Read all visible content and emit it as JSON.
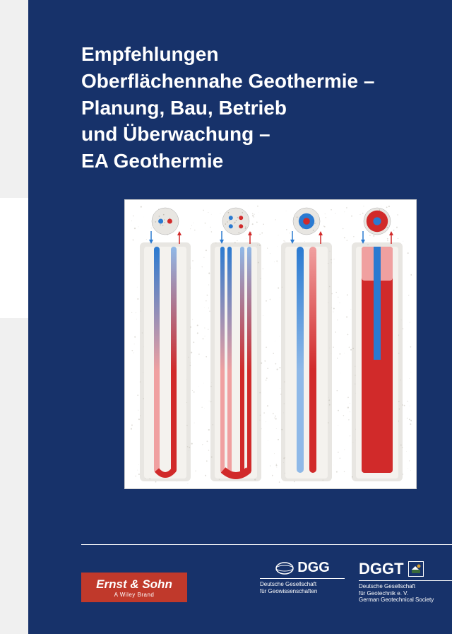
{
  "title_lines": "Empfehlungen\nOberflächennahe Geothermie –\nPlanung, Bau, Betrieb\nund Überwachung –\nEA Geothermie",
  "colors": {
    "cover_bg": "#17326a",
    "diagram_bg": "#ffffff",
    "borehole_fill": "#e8e6e2",
    "soil_speckle": "#bdb9b0",
    "pipe_cold": "#2a7ad1",
    "pipe_cold_light": "#8fb9e8",
    "pipe_hot": "#d12a2a",
    "pipe_hot_light": "#f0a0a0",
    "arrow_down": "#2a7ad1",
    "arrow_up": "#d12a2a",
    "ernst_red": "#c0392b"
  },
  "diagram": {
    "panels": [
      {
        "type": "single-u",
        "pipes": 2,
        "top_section": "dots"
      },
      {
        "type": "double-u",
        "pipes": 4,
        "top_section": "dots"
      },
      {
        "type": "coaxial-simple",
        "pipes": 2,
        "top_section": "ring",
        "inner_color": "#d12a2a",
        "outer_color": "#2a7ad1"
      },
      {
        "type": "coaxial-thick",
        "pipes": 2,
        "top_section": "ring-thick",
        "inner_color": "#2a7ad1",
        "outer_color": "#d12a2a"
      }
    ],
    "borehole_width": 60,
    "borehole_height": 340,
    "cross_section_r": 16
  },
  "logos": {
    "ernst": {
      "brand": "Ernst & Sohn",
      "sub": "A Wiley Brand"
    },
    "dgg": {
      "abbr": "DGG",
      "full": "Deutsche Gesellschaft\nfür Geowissenschaften"
    },
    "dggt": {
      "abbr": "DGGT",
      "full": "Deutsche Gesellschaft\nfür Geotechnik e. V.\nGerman Geotechnical Society"
    }
  }
}
